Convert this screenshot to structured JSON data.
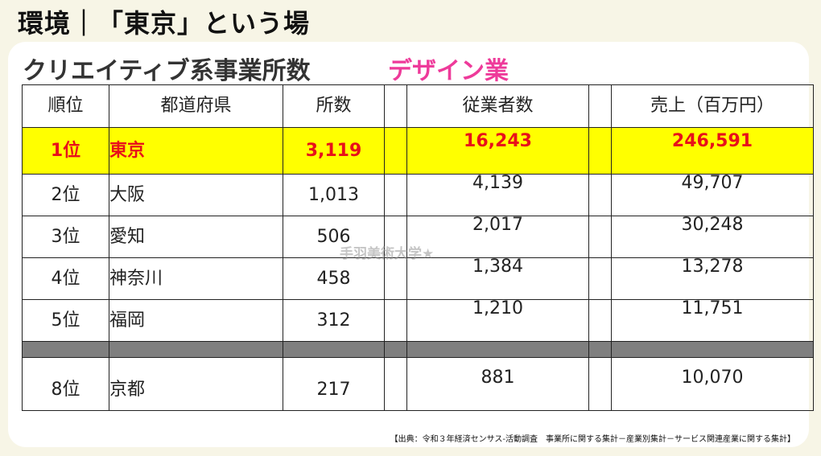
{
  "header": {
    "title": "環境｜「東京」という場"
  },
  "section": {
    "subtitle": "クリエイティブ系事業所数",
    "category": "デザイン業"
  },
  "table": {
    "headers": {
      "rank": "順位",
      "prefecture": "都道府県",
      "count": "所数",
      "employees": "従業者数",
      "sales": "売上（百万円）"
    },
    "rows": [
      {
        "rank": "1位",
        "prefecture": "東京",
        "count": "3,119",
        "employees": "16,243",
        "sales": "246,591"
      },
      {
        "rank": "2位",
        "prefecture": "大阪",
        "count": "1,013",
        "employees": "4,139",
        "sales": "49,707"
      },
      {
        "rank": "3位",
        "prefecture": "愛知",
        "count": "506",
        "employees": "2,017",
        "sales": "30,248"
      },
      {
        "rank": "4位",
        "prefecture": "神奈川",
        "count": "458",
        "employees": "1,384",
        "sales": "13,278"
      },
      {
        "rank": "5位",
        "prefecture": "福岡",
        "count": "312",
        "employees": "1,210",
        "sales": "11,751"
      }
    ],
    "last_row": {
      "rank": "8位",
      "prefecture": "京都",
      "count": "217",
      "employees": "881",
      "sales": "10,070"
    }
  },
  "watermark": "手羽美術大学★",
  "source": "【出典：令和３年経済センサス-活動調査　事業所に関する集計－産業別集計－サービス関連産業に関する集計】",
  "colors": {
    "highlight_bg": "#ffff00",
    "highlight_text": "#e8101a",
    "accent": "#ee3a9a",
    "separator": "#7f7f7f"
  }
}
